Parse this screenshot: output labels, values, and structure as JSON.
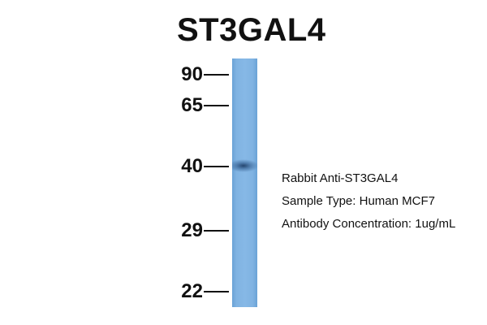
{
  "title": "ST3GAL4",
  "markers": [
    "90",
    "65",
    "40",
    "29",
    "22"
  ],
  "info": {
    "antibody": "Rabbit Anti-ST3GAL4",
    "sample_type": "Sample Type: Human MCF7",
    "concentration": "Antibody Concentration: 1ug/mL"
  },
  "colors": {
    "lane": "#86b8e6",
    "band": "#1e3c64",
    "text": "#111111"
  }
}
